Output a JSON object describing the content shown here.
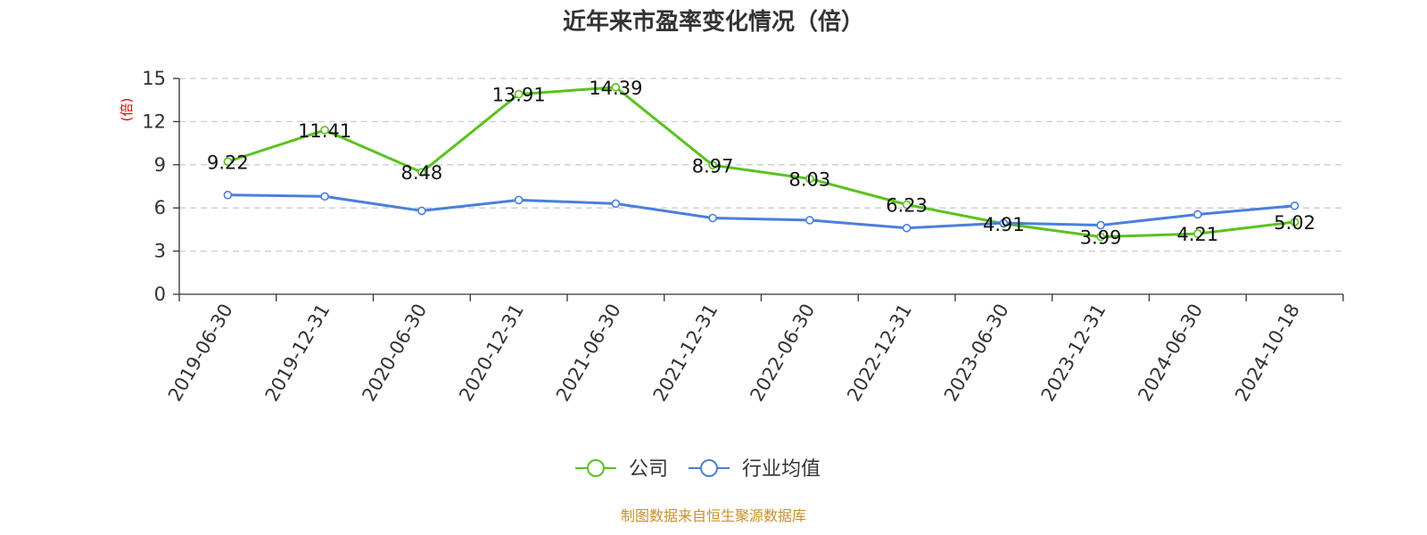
{
  "chart_data": {
    "type": "line",
    "title": "近年来市盈率变化情况（倍）",
    "ylabel": "(倍)",
    "xlabel": "",
    "categories": [
      "2019-06-30",
      "2019-12-31",
      "2020-06-30",
      "2020-12-31",
      "2021-06-30",
      "2021-12-31",
      "2022-06-30",
      "2022-12-31",
      "2023-06-30",
      "2023-12-31",
      "2024-06-30",
      "2024-10-18"
    ],
    "ylim": [
      0,
      15
    ],
    "yticks": [
      "0",
      "3",
      "6",
      "9",
      "12",
      "15"
    ],
    "grid": true,
    "legend_position": "bottom-center",
    "series": [
      {
        "name": "公司",
        "color": "#5ac21e",
        "values": [
          9.22,
          11.41,
          8.48,
          13.91,
          14.39,
          8.97,
          8.03,
          6.23,
          4.91,
          3.99,
          4.21,
          5.02
        ],
        "labels": [
          "9.22",
          "11.41",
          "8.48",
          "13.91",
          "14.39",
          "8.97",
          "8.03",
          "6.23",
          "4.91",
          "3.99",
          "4.21",
          "5.02"
        ]
      },
      {
        "name": "行业均值",
        "color": "#4a7fdc",
        "values": [
          6.9,
          6.8,
          5.8,
          6.55,
          6.3,
          5.3,
          5.15,
          4.6,
          4.95,
          4.8,
          5.55,
          6.15
        ]
      }
    ]
  },
  "source": "制图数据来自恒生聚源数据库"
}
